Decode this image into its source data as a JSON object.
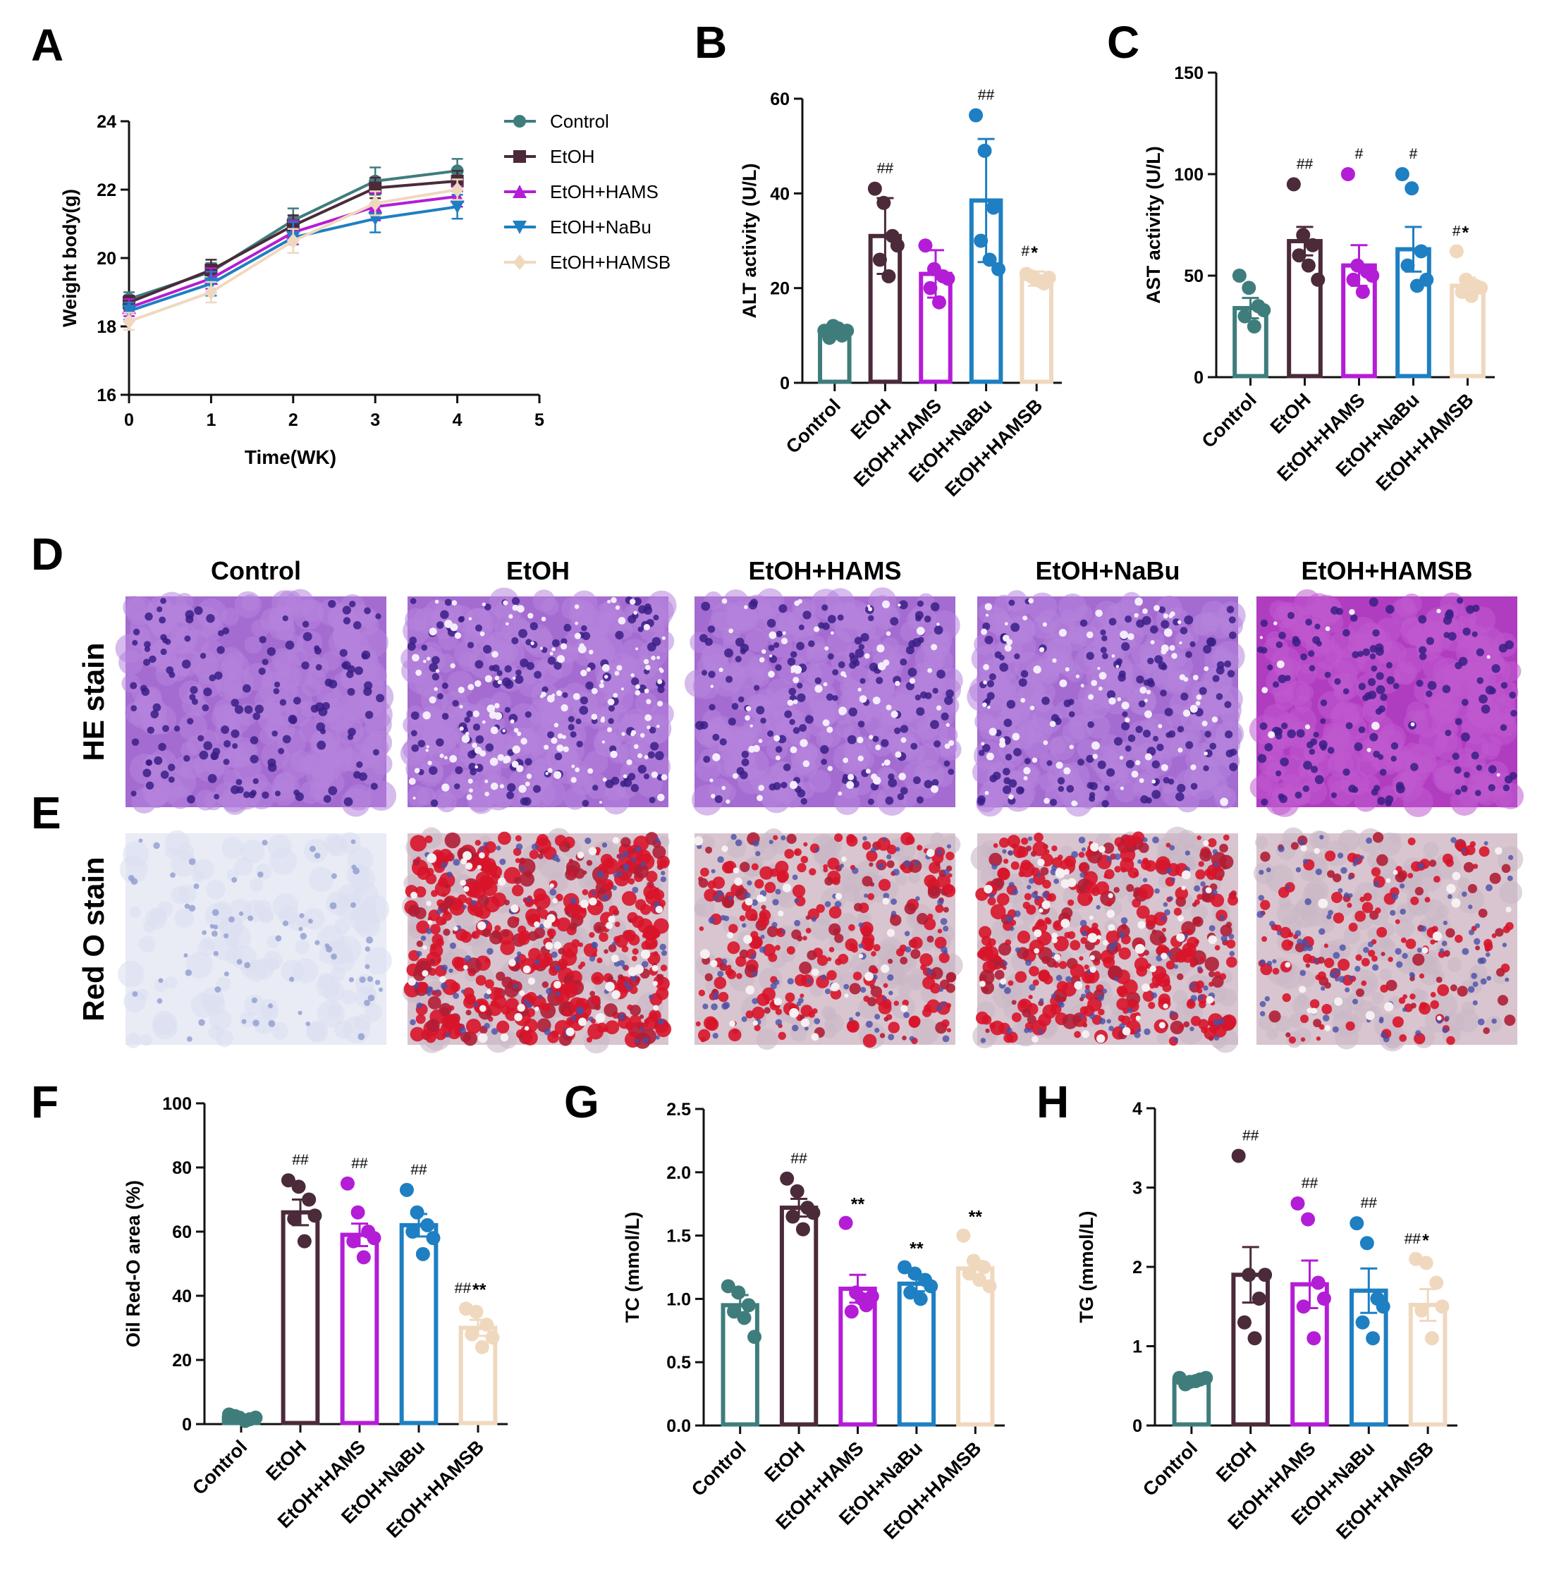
{
  "figure": {
    "panel_letters": [
      "A",
      "B",
      "C",
      "D",
      "E",
      "F",
      "G",
      "H"
    ],
    "histology": {
      "columns": [
        "Control",
        "EtOH",
        "EtOH+HAMS",
        "EtOH+NaBu",
        "EtOH+HAMSB"
      ],
      "rows": [
        {
          "label": "HE stain",
          "kind": "he"
        },
        {
          "label": "Red O stain",
          "kind": "oro"
        }
      ],
      "red_o_level": [
        0.0,
        1.0,
        0.55,
        0.8,
        0.35
      ]
    }
  },
  "colors": {
    "groups": [
      "#3F7D7C",
      "#4B2A3A",
      "#B41DD6",
      "#1E7FC2",
      "#F0D8BE"
    ],
    "axis": "#111111"
  },
  "chart_data": [
    {
      "id": "A",
      "type": "line",
      "xlabel": "Time(WK)",
      "ylabel": "Weight body(g)",
      "xlim": [
        0,
        5
      ],
      "ylim": [
        16,
        24
      ],
      "xticks": [
        0,
        1,
        2,
        3,
        4,
        5
      ],
      "yticks": [
        16,
        18,
        20,
        22,
        24
      ],
      "x": [
        0,
        1,
        2,
        3,
        4
      ],
      "series": [
        {
          "name": "Control",
          "marker": "circle",
          "values": [
            18.8,
            19.6,
            21.1,
            22.25,
            22.55
          ],
          "err": [
            0.2,
            0.25,
            0.35,
            0.4,
            0.35
          ]
        },
        {
          "name": "EtOH",
          "marker": "square",
          "values": [
            18.7,
            19.65,
            20.95,
            22.05,
            22.25
          ],
          "err": [
            0.2,
            0.3,
            0.3,
            0.3,
            0.3
          ]
        },
        {
          "name": "EtOH+HAMS",
          "marker": "triangle-up",
          "values": [
            18.55,
            19.4,
            20.75,
            21.5,
            21.8
          ],
          "err": [
            0.25,
            0.3,
            0.35,
            0.4,
            0.3
          ]
        },
        {
          "name": "EtOH+NaBu",
          "marker": "triangle-down",
          "values": [
            18.45,
            19.25,
            20.6,
            21.15,
            21.5
          ],
          "err": [
            0.25,
            0.35,
            0.45,
            0.4,
            0.35
          ]
        },
        {
          "name": "EtOH+HAMSB",
          "marker": "diamond",
          "values": [
            18.15,
            19.0,
            20.5,
            21.6,
            22.0
          ],
          "err": [
            0.25,
            0.3,
            0.35,
            0.35,
            0.3
          ]
        }
      ],
      "legend": [
        "Control",
        "EtOH",
        "EtOH+HAMS",
        "EtOH+NaBu",
        "EtOH+HAMSB"
      ]
    },
    {
      "id": "B",
      "type": "bar",
      "ylabel": "ALT activity (U/L)",
      "ylim": [
        0,
        60
      ],
      "yticks": [
        0,
        20,
        40,
        60
      ],
      "categories": [
        "Control",
        "EtOH",
        "EtOH+HAMS",
        "EtOH+NaBu",
        "EtOH+HAMSB"
      ],
      "values": [
        11,
        31,
        23,
        38.5,
        22
      ],
      "err": [
        1,
        8,
        5,
        13,
        1.5
      ],
      "points": [
        [
          11,
          12,
          10,
          9.5,
          11.5,
          11
        ],
        [
          41,
          38,
          31,
          26,
          22.5,
          29
        ],
        [
          29,
          24,
          22.5,
          20,
          17,
          22
        ],
        [
          56.5,
          49,
          37,
          30,
          26,
          24
        ],
        [
          23,
          22,
          21,
          22.5,
          21.5,
          22.2
        ]
      ],
      "annotations": [
        {
          "hash": "",
          "star": ""
        },
        {
          "hash": "##",
          "star": ""
        },
        {
          "hash": "",
          "star": ""
        },
        {
          "hash": "##",
          "star": ""
        },
        {
          "hash": "#",
          "star": "*"
        }
      ]
    },
    {
      "id": "C",
      "type": "bar",
      "ylabel": "AST activity (U/L)",
      "ylim": [
        0,
        150
      ],
      "yticks": [
        0,
        50,
        100,
        150
      ],
      "categories": [
        "Control",
        "EtOH",
        "EtOH+HAMS",
        "EtOH+NaBu",
        "EtOH+HAMSB"
      ],
      "values": [
        34,
        67,
        55,
        63,
        45
      ],
      "err": [
        5,
        7,
        10,
        11,
        4
      ],
      "points": [
        [
          50,
          44,
          35,
          30,
          25,
          33
        ],
        [
          95,
          70,
          65,
          60,
          55,
          48
        ],
        [
          100,
          55,
          52,
          48,
          42,
          50
        ],
        [
          100,
          93,
          62,
          55,
          45,
          48
        ],
        [
          62,
          48,
          45,
          42,
          40,
          44
        ]
      ],
      "annotations": [
        {
          "hash": "",
          "star": ""
        },
        {
          "hash": "##",
          "star": ""
        },
        {
          "hash": "#",
          "star": ""
        },
        {
          "hash": "#",
          "star": ""
        },
        {
          "hash": "#",
          "star": "*"
        }
      ]
    },
    {
      "id": "F",
      "type": "bar",
      "ylabel": "Oil Red-O area (%)",
      "ylim": [
        0,
        100
      ],
      "yticks": [
        0,
        20,
        40,
        60,
        80,
        100
      ],
      "categories": [
        "Control",
        "EtOH",
        "EtOH+HAMS",
        "EtOH+NaBu",
        "EtOH+HAMSB"
      ],
      "values": [
        2,
        66,
        59,
        62,
        30
      ],
      "err": [
        0.5,
        4,
        3.5,
        3.5,
        2.5
      ],
      "points": [
        [
          3,
          2,
          1.5,
          2.5,
          1,
          2
        ],
        [
          76,
          74,
          70,
          64,
          57,
          65
        ],
        [
          75,
          66,
          60,
          57,
          52,
          58
        ],
        [
          73,
          66,
          62,
          60,
          53,
          58
        ],
        [
          36,
          35,
          31,
          28,
          24,
          27
        ]
      ],
      "annotations": [
        {
          "hash": "",
          "star": ""
        },
        {
          "hash": "##",
          "star": ""
        },
        {
          "hash": "##",
          "star": ""
        },
        {
          "hash": "##",
          "star": ""
        },
        {
          "hash": "##",
          "star": "**"
        }
      ]
    },
    {
      "id": "G",
      "type": "bar",
      "ylabel": "TC (mmol/L)",
      "ylim": [
        0,
        2.5
      ],
      "yticks": [
        "0.0",
        "0.5",
        "1.0",
        "1.5",
        "2.0",
        "2.5"
      ],
      "categories": [
        "Control",
        "EtOH",
        "EtOH+HAMS",
        "EtOH+NaBu",
        "EtOH+HAMSB"
      ],
      "values": [
        0.95,
        1.72,
        1.08,
        1.12,
        1.24
      ],
      "err": [
        0.08,
        0.07,
        0.11,
        0.06,
        0.06
      ],
      "points": [
        [
          1.1,
          1.05,
          0.95,
          0.9,
          0.85,
          0.7
        ],
        [
          1.95,
          1.85,
          1.72,
          1.65,
          1.55,
          1.68
        ],
        [
          1.6,
          1.05,
          0.95,
          0.9,
          1.0,
          1.02
        ],
        [
          1.25,
          1.2,
          1.15,
          1.05,
          1.0,
          1.1
        ],
        [
          1.5,
          1.3,
          1.25,
          1.2,
          1.15,
          1.1
        ]
      ],
      "annotations": [
        {
          "hash": "",
          "star": ""
        },
        {
          "hash": "##",
          "star": ""
        },
        {
          "hash": "",
          "star": "**"
        },
        {
          "hash": "",
          "star": "**"
        },
        {
          "hash": "",
          "star": "**"
        }
      ]
    },
    {
      "id": "H",
      "type": "bar",
      "ylabel": "TG (mmol/L)",
      "ylim": [
        0,
        4
      ],
      "yticks": [
        0,
        1,
        2,
        3,
        4
      ],
      "categories": [
        "Control",
        "EtOH",
        "EtOH+HAMS",
        "EtOH+NaBu",
        "EtOH+HAMSB"
      ],
      "values": [
        0.57,
        1.9,
        1.78,
        1.7,
        1.52
      ],
      "err": [
        0.03,
        0.35,
        0.3,
        0.28,
        0.2
      ],
      "points": [
        [
          0.6,
          0.55,
          0.58,
          0.52,
          0.56,
          0.6
        ],
        [
          3.4,
          1.9,
          1.6,
          1.3,
          1.1,
          1.9
        ],
        [
          2.8,
          2.6,
          1.8,
          1.5,
          1.1,
          1.6
        ],
        [
          2.55,
          2.3,
          1.6,
          1.3,
          1.1,
          1.5
        ],
        [
          2.1,
          2.05,
          1.8,
          1.45,
          1.1,
          1.5
        ]
      ],
      "annotations": [
        {
          "hash": "",
          "star": ""
        },
        {
          "hash": "##",
          "star": ""
        },
        {
          "hash": "##",
          "star": ""
        },
        {
          "hash": "##",
          "star": ""
        },
        {
          "hash": "##",
          "star": "*"
        }
      ]
    }
  ]
}
